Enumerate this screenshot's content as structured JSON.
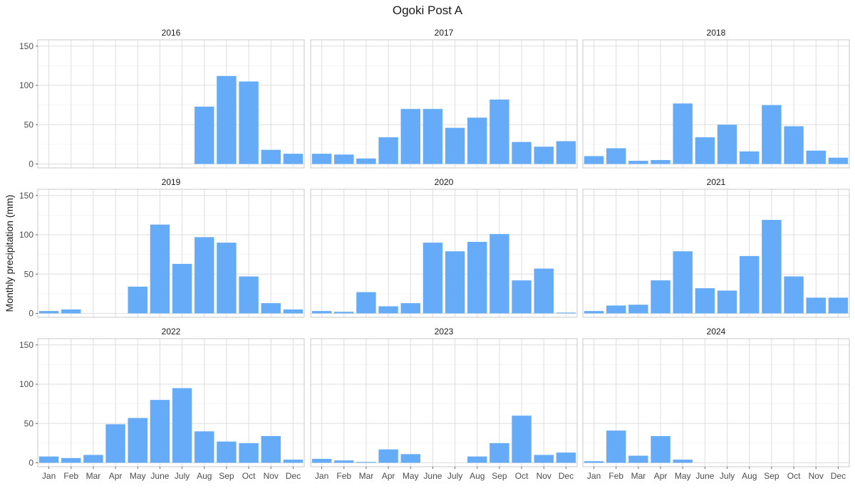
{
  "chart_data": {
    "type": "bar",
    "title": "Ogoki Post A",
    "xlabel": "",
    "ylabel": "Monthly precipitation (mm)",
    "ylim": [
      -5,
      158
    ],
    "y_ticks": [
      0,
      50,
      100,
      150
    ],
    "grid": true,
    "bar_color": "#66abf7",
    "categories": [
      "Jan",
      "Feb",
      "Mar",
      "Apr",
      "May",
      "June",
      "July",
      "Aug",
      "Sep",
      "Oct",
      "Nov",
      "Dec"
    ],
    "panels": [
      {
        "year": "2016",
        "values": [
          null,
          null,
          null,
          null,
          null,
          null,
          null,
          73,
          112,
          105,
          18,
          13
        ]
      },
      {
        "year": "2017",
        "values": [
          13,
          12,
          7,
          34,
          70,
          70,
          46,
          59,
          82,
          28,
          22,
          29
        ]
      },
      {
        "year": "2018",
        "values": [
          10,
          20,
          4,
          5,
          77,
          34,
          50,
          16,
          75,
          48,
          17,
          8
        ]
      },
      {
        "year": "2019",
        "values": [
          3,
          5,
          null,
          null,
          34,
          113,
          63,
          97,
          90,
          47,
          13,
          5
        ]
      },
      {
        "year": "2020",
        "values": [
          3,
          2,
          27,
          9,
          13,
          90,
          79,
          91,
          101,
          42,
          57,
          1
        ]
      },
      {
        "year": "2021",
        "values": [
          3,
          10,
          11,
          42,
          79,
          32,
          29,
          73,
          119,
          47,
          20,
          20
        ]
      },
      {
        "year": "2022",
        "values": [
          8,
          6,
          10,
          49,
          57,
          80,
          95,
          40,
          27,
          25,
          34,
          4
        ]
      },
      {
        "year": "2023",
        "values": [
          5,
          3,
          1,
          17,
          11,
          null,
          null,
          8,
          25,
          60,
          10,
          13
        ]
      },
      {
        "year": "2024",
        "values": [
          2,
          41,
          9,
          34,
          4,
          null,
          null,
          null,
          null,
          null,
          null,
          null
        ]
      }
    ]
  }
}
